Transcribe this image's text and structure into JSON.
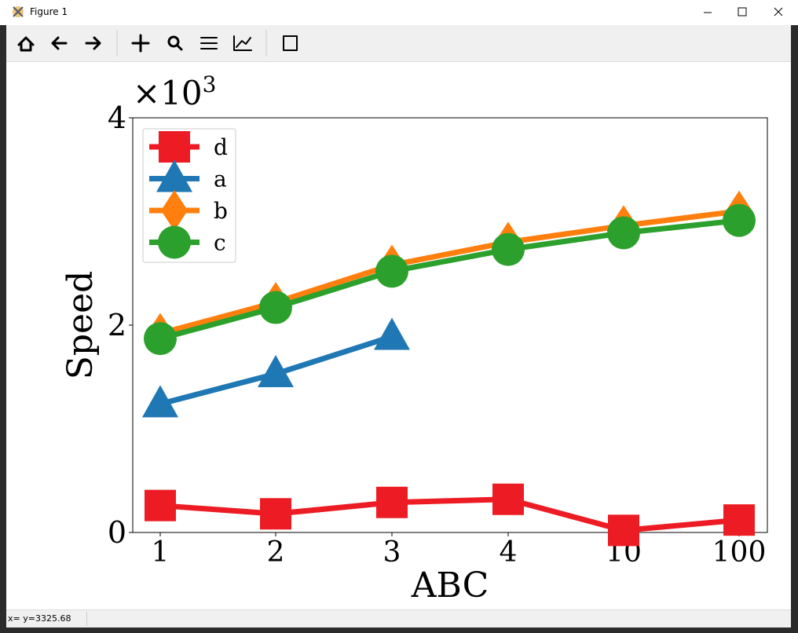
{
  "window": {
    "title": "Figure 1",
    "status": "x= y=3325.68"
  },
  "chart_data": {
    "type": "line",
    "xlabel": "ABC",
    "ylabel": "Speed",
    "offset_text": {
      "base": "×10",
      "exponent": "3"
    },
    "categories": [
      "1",
      "2",
      "3",
      "4",
      "10",
      "100"
    ],
    "series": [
      {
        "name": "d",
        "color": "#ed1c24",
        "marker": "square",
        "values": [
          260,
          180,
          290,
          320,
          20,
          120
        ]
      },
      {
        "name": "a",
        "color": "#1f77b4",
        "marker": "triangle",
        "values": [
          1240,
          1530,
          1890,
          null,
          null,
          null
        ]
      },
      {
        "name": "b",
        "color": "#ff7f0e",
        "marker": "diamond",
        "values": [
          1920,
          2220,
          2580,
          2800,
          2960,
          3100
        ]
      },
      {
        "name": "c",
        "color": "#2ca02c",
        "marker": "circle",
        "values": [
          1870,
          2170,
          2520,
          2730,
          2890,
          3010
        ]
      }
    ],
    "ylim": [
      0,
      4000
    ],
    "yticks": [
      0,
      {
        "value": 2000,
        "label": "2"
      },
      {
        "value": 4000,
        "label": "4"
      }
    ],
    "grid": false,
    "legend": "upper left"
  }
}
